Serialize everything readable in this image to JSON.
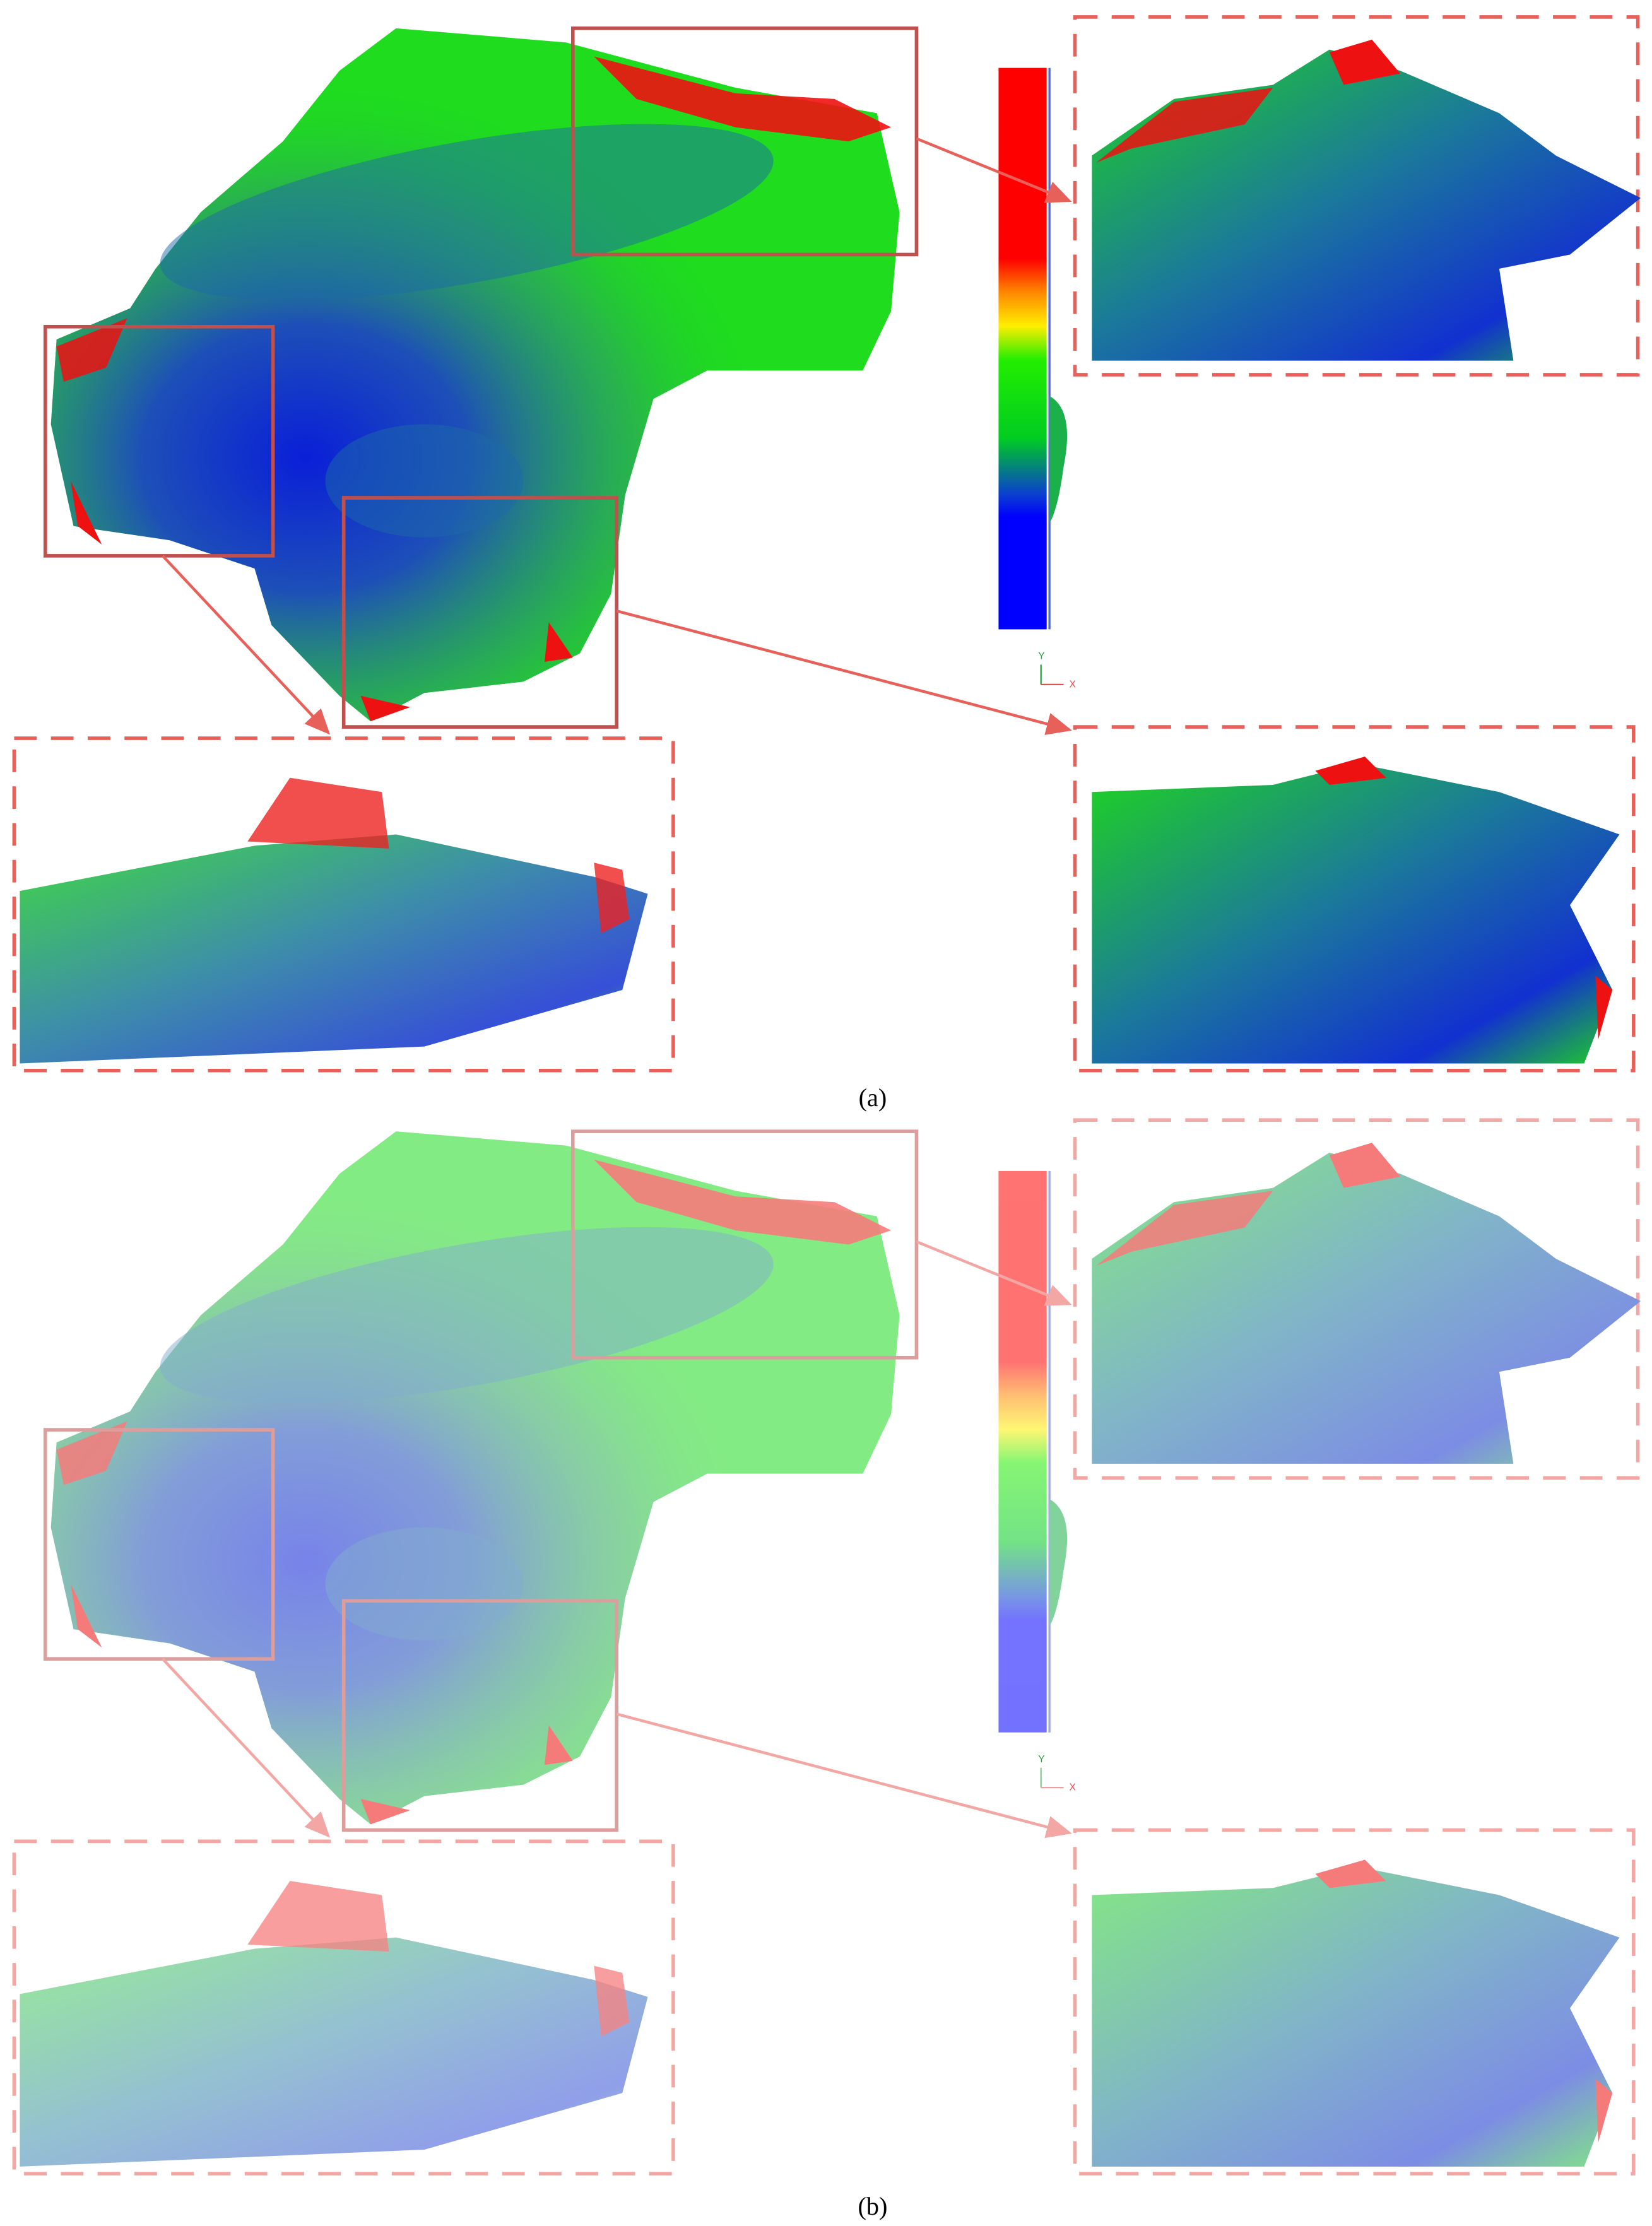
{
  "panels": [
    {
      "caption": "(a)",
      "axis_labels": [
        "Y",
        "X"
      ]
    },
    {
      "caption": "(b)",
      "axis_labels": [
        "Y",
        "X"
      ]
    }
  ]
}
